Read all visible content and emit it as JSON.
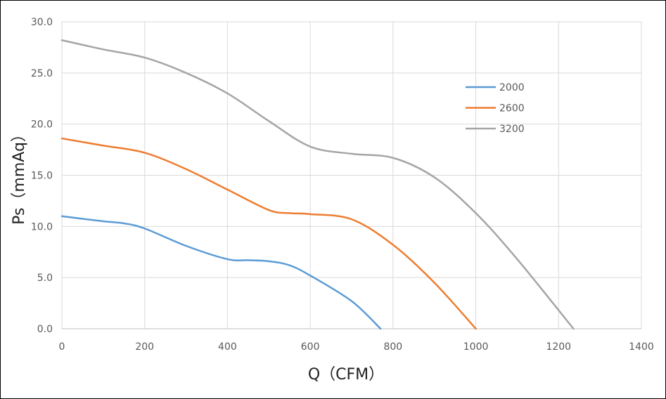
{
  "chart_data": {
    "type": "line",
    "title": "",
    "xlabel": "Q（CFM）",
    "ylabel": "Ps（mmAq）",
    "xlim": [
      0,
      1400
    ],
    "ylim": [
      0,
      30
    ],
    "xticks": [
      "0",
      "200",
      "400",
      "600",
      "800",
      "1000",
      "1200",
      "1400"
    ],
    "yticks": [
      "0.0",
      "5.0",
      "10.0",
      "15.0",
      "20.0",
      "25.0",
      "30.0"
    ],
    "grid": true,
    "legend_position": "top-right",
    "series": [
      {
        "name": "2000",
        "color": "#5b9bd5",
        "x": [
          0,
          100,
          150,
          200,
          300,
          400,
          450,
          500,
          550,
          600,
          700,
          770
        ],
        "y": [
          11.0,
          10.5,
          10.3,
          9.8,
          8.1,
          6.8,
          6.7,
          6.6,
          6.2,
          5.2,
          2.7,
          0
        ]
      },
      {
        "name": "2600",
        "color": "#ed7d31",
        "x": [
          0,
          100,
          200,
          300,
          400,
          500,
          550,
          600,
          700,
          800,
          900,
          1000
        ],
        "y": [
          18.6,
          17.9,
          17.2,
          15.6,
          13.6,
          11.6,
          11.3,
          11.2,
          10.7,
          8.2,
          4.5,
          0
        ]
      },
      {
        "name": "3200",
        "color": "#a5a5a5",
        "x": [
          0,
          100,
          200,
          300,
          400,
          500,
          600,
          700,
          800,
          900,
          1000,
          1100,
          1236
        ],
        "y": [
          28.2,
          27.3,
          26.5,
          25.0,
          23.0,
          20.3,
          17.8,
          17.1,
          16.7,
          14.8,
          11.3,
          6.8,
          0
        ]
      }
    ]
  }
}
